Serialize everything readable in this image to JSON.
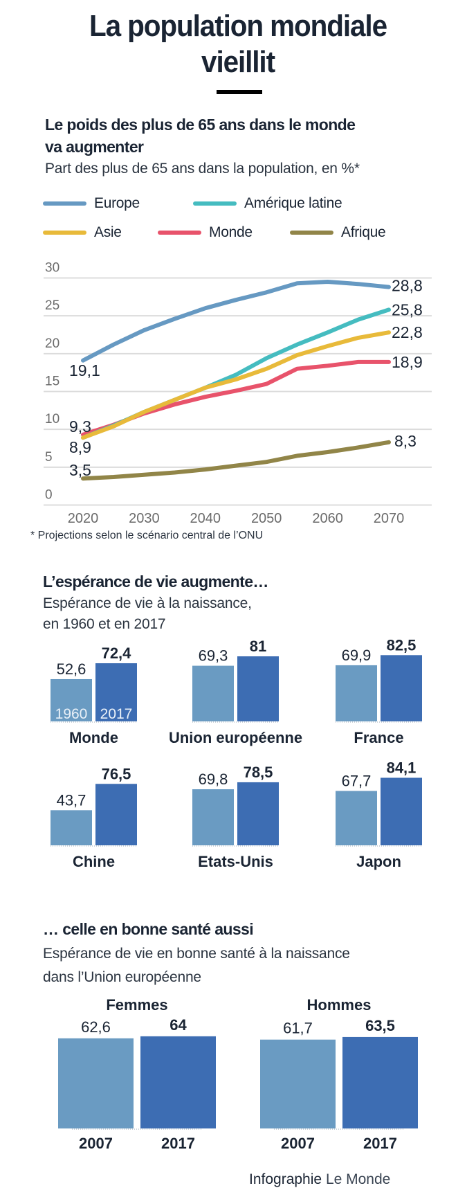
{
  "title": {
    "line1": "La population mondiale",
    "line2": "vieillit"
  },
  "section1": {
    "heading_line1": "Le poids des plus de 65 ans dans le monde",
    "heading_line2": "va augmenter",
    "subtitle": "Part des plus de 65 ans dans la population, en %*",
    "footnote": "* Projections selon le scénario central de l’ONU"
  },
  "section2": {
    "heading": "L’espérance de vie augmente…",
    "subtitle_line1": "Espérance de vie à la naissance,",
    "subtitle_line2": "en 1960 et en 2017"
  },
  "section3": {
    "heading": "… celle en bonne santé aussi",
    "subtitle_line1": "Espérance de vie en bonne santé à la naissance",
    "subtitle_line2": "dans l’Union européenne"
  },
  "credit": {
    "bold": "Infographie",
    "light": "Le Monde"
  },
  "colors": {
    "europe": "#6699c2",
    "amerique_latine": "#45bcc0",
    "asie": "#e8ba3a",
    "monde": "#e8536b",
    "afrique": "#918548",
    "bar_light": "#6a9bc2",
    "bar_dark": "#3d6db3"
  },
  "chart_data": [
    {
      "type": "line",
      "title": "Le poids des plus de 65 ans dans le monde va augmenter",
      "subtitle": "Part des plus de 65 ans dans la population, en %*",
      "xlabel": "",
      "ylabel": "",
      "x": [
        2020,
        2025,
        2030,
        2035,
        2040,
        2045,
        2050,
        2055,
        2060,
        2065,
        2070
      ],
      "x_ticks": [
        "2020",
        "2030",
        "2040",
        "2050",
        "2060",
        "2070"
      ],
      "y_ticks": [
        "0",
        "5",
        "10",
        "15",
        "20",
        "25",
        "30"
      ],
      "ylim": [
        0,
        30
      ],
      "grid": true,
      "legend_position": "top",
      "series": [
        {
          "key": "europe",
          "name": "Europe",
          "values": [
            19.1,
            21.2,
            23.1,
            24.6,
            26.0,
            27.1,
            28.1,
            29.3,
            29.5,
            29.2,
            28.8
          ],
          "start_label": "19,1",
          "end_label": "28,8"
        },
        {
          "key": "amerique_latine",
          "name": "Amérique latine",
          "values": [
            8.9,
            10.5,
            12.3,
            13.9,
            15.5,
            17.2,
            19.4,
            21.2,
            22.8,
            24.5,
            25.8
          ],
          "start_label": "",
          "end_label": "25,8"
        },
        {
          "key": "asie",
          "name": "Asie",
          "values": [
            8.9,
            10.4,
            12.3,
            13.9,
            15.5,
            16.6,
            18.0,
            19.8,
            21.0,
            22.1,
            22.8
          ],
          "start_label": "8,9",
          "end_label": "22,8"
        },
        {
          "key": "monde",
          "name": "Monde",
          "values": [
            9.3,
            10.6,
            12.1,
            13.3,
            14.3,
            15.1,
            16.0,
            18.0,
            18.4,
            18.9,
            18.9
          ],
          "start_label": "9,3",
          "end_label": "18,9"
        },
        {
          "key": "afrique",
          "name": "Afrique",
          "values": [
            3.5,
            3.7,
            4.0,
            4.3,
            4.7,
            5.2,
            5.7,
            6.5,
            7.0,
            7.6,
            8.3
          ],
          "start_label": "3,5",
          "end_label": "8,3"
        }
      ],
      "legend_rows": [
        [
          "europe",
          "amerique_latine"
        ],
        [
          "asie",
          "monde",
          "afrique"
        ]
      ]
    },
    {
      "type": "bar",
      "title": "L’espérance de vie augmente…",
      "subtitle": "Espérance de vie à la naissance, en 1960 et en 2017",
      "series_names": [
        "1960",
        "2017"
      ],
      "groups": [
        {
          "name": "Monde",
          "values": [
            52.6,
            72.4
          ],
          "labels": [
            "52,6",
            "72,4"
          ],
          "show_year_labels": true
        },
        {
          "name": "Union européenne",
          "values": [
            69.3,
            81
          ],
          "labels": [
            "69,3",
            "81"
          ]
        },
        {
          "name": "France",
          "values": [
            69.9,
            82.5
          ],
          "labels": [
            "69,9",
            "82,5"
          ]
        },
        {
          "name": "Chine",
          "values": [
            43.7,
            76.5
          ],
          "labels": [
            "43,7",
            "76,5"
          ]
        },
        {
          "name": "Etats-Unis",
          "values": [
            69.8,
            78.5
          ],
          "labels": [
            "69,8",
            "78,5"
          ]
        },
        {
          "name": "Japon",
          "values": [
            67.7,
            84.1
          ],
          "labels": [
            "67,7",
            "84,1"
          ]
        }
      ],
      "ylim": [
        0,
        90
      ]
    },
    {
      "type": "bar",
      "title": "… celle en bonne santé aussi",
      "subtitle": "Espérance de vie en bonne santé à la naissance dans l’Union européenne",
      "categories": [
        "2007",
        "2017"
      ],
      "groups": [
        {
          "name": "Femmes",
          "values": [
            62.6,
            64
          ],
          "labels": [
            "62,6",
            "64"
          ]
        },
        {
          "name": "Hommes",
          "values": [
            61.7,
            63.5
          ],
          "labels": [
            "61,7",
            "63,5"
          ]
        }
      ],
      "ylim": [
        0,
        65
      ]
    }
  ]
}
